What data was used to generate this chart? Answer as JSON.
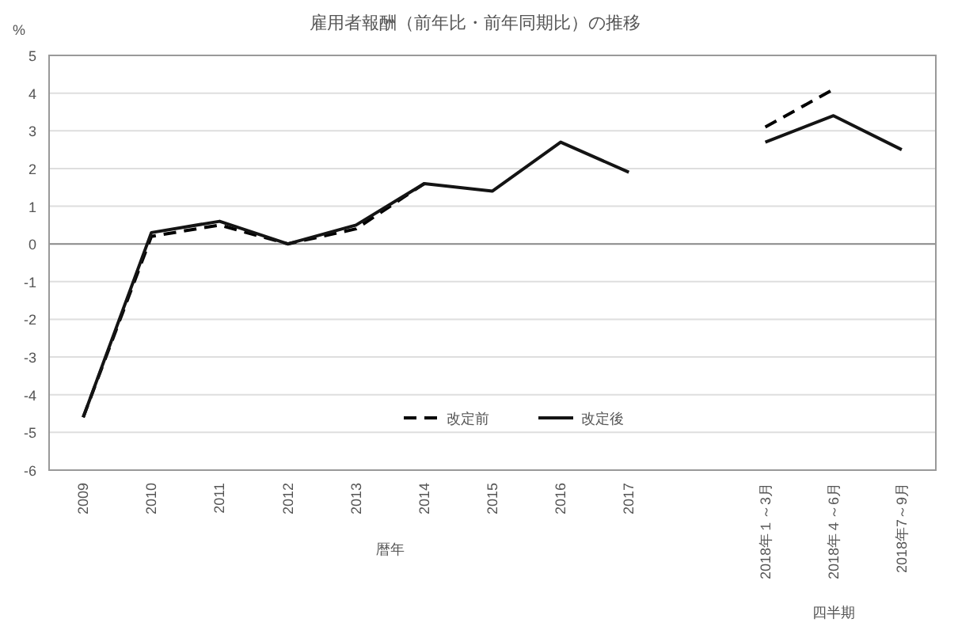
{
  "chart_data": {
    "type": "line",
    "title": "雇用者報酬（前年比・前年同期比）の推移",
    "ylabel": "%",
    "xlabel": "暦年",
    "annotations": [
      "四半期"
    ],
    "categories": [
      "2009",
      "2010",
      "2011",
      "2012",
      "2013",
      "2014",
      "2015",
      "2016",
      "2017",
      null,
      "2018年１～3月",
      "2018年４～6月",
      "2018年7～9月"
    ],
    "series": [
      {
        "name": "改定前",
        "color": "#000000",
        "line_style": "dashed",
        "values": [
          -4.6,
          0.2,
          0.5,
          0,
          0.4,
          1.6,
          null,
          null,
          null,
          null,
          3.1,
          4.1,
          null
        ]
      },
      {
        "name": "改定後",
        "color": "#141414",
        "line_style": "solid",
        "values": [
          -4.6,
          0.3,
          0.6,
          0,
          0.5,
          1.6,
          1.4,
          2.7,
          1.9,
          null,
          2.7,
          3.4,
          2.5
        ]
      }
    ],
    "ylim": [
      -6,
      5
    ],
    "yticks": [
      -6,
      -5,
      -4,
      -3,
      -2,
      -1,
      0,
      1,
      2,
      3,
      4,
      5
    ],
    "grid": "y",
    "legend": "bottom",
    "marker": "none"
  }
}
